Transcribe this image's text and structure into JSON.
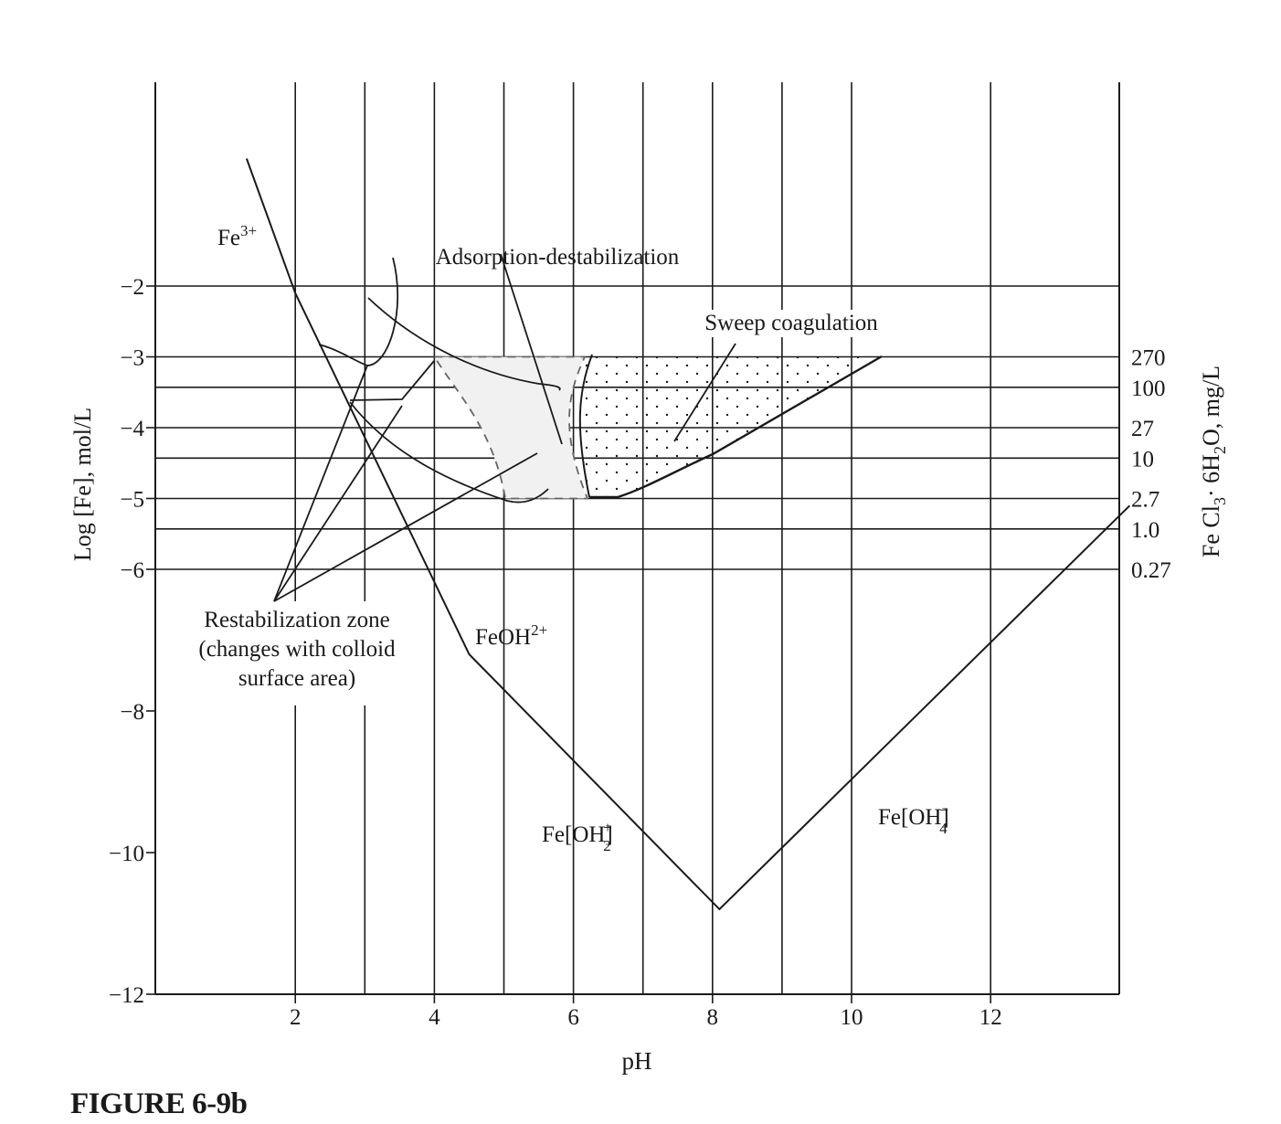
{
  "figure": {
    "caption": "FIGURE 6-9b"
  },
  "chart_data": {
    "type": "line",
    "xlabel": "pH",
    "ylabel": "Log [Fe], mol/L",
    "y2label_parts": [
      "Fe Cl",
      "3",
      "· 6H",
      "2",
      "O, mg/L"
    ],
    "xlim": [
      0,
      14
    ],
    "ylim": [
      -12,
      0
    ],
    "x_ticks": [
      2,
      4,
      6,
      8,
      10,
      12
    ],
    "y_ticks": [
      -2,
      -3,
      -4,
      -5,
      -6,
      -8,
      -10,
      -12
    ],
    "y_tick_labels": [
      "−2",
      "−3",
      "−4",
      "−5",
      "−6",
      "−8",
      "−10",
      "−12"
    ],
    "secondary_y_ticks": [
      {
        "y": -3.0,
        "label": "270"
      },
      {
        "y": -3.43,
        "label": "100"
      },
      {
        "y": -4.0,
        "label": "27"
      },
      {
        "y": -4.43,
        "label": "10"
      },
      {
        "y": -5.0,
        "label": "2.7"
      },
      {
        "y": -5.43,
        "label": "1.0"
      },
      {
        "y": -6.0,
        "label": "0.27"
      }
    ],
    "grid_x": [
      2,
      3,
      4,
      5,
      6,
      7,
      8,
      9,
      10,
      12
    ],
    "grid_y": [
      -2,
      -3,
      -3.43,
      -4,
      -4.43,
      -5,
      -5.43,
      -6
    ],
    "grid": true,
    "series": [
      {
        "name": "solubility boundary",
        "x": [
          1.3,
          2.0,
          4.5,
          8.1,
          14.0
        ],
        "y": [
          -0.2,
          -2.1,
          -7.2,
          -10.8,
          -5.1
        ]
      }
    ],
    "regions": [
      {
        "name": "Sweep coagulation",
        "x": [
          6.2,
          10.5,
          8.0,
          6.7,
          6.2
        ],
        "y": [
          -3.0,
          -3.0,
          -4.4,
          -5.0,
          -5.0
        ]
      },
      {
        "name": "Adsorption-destabilization",
        "x": [
          4.0,
          6.2,
          5.9,
          6.2,
          5.0,
          4.0
        ],
        "y": [
          -3.0,
          -3.0,
          -4.0,
          -5.0,
          -5.0,
          -3.0
        ]
      }
    ],
    "species": [
      {
        "label": "Fe",
        "sup": "3+"
      },
      {
        "label": "FeOH",
        "sup": "2+"
      },
      {
        "label": "Fe[OH]",
        "sup": "+",
        "sub": "2"
      },
      {
        "label": "Fe[OH]",
        "sup": "−",
        "sub": "4"
      }
    ],
    "annotations": [
      {
        "text": "Adsorption-destabilization"
      },
      {
        "text": "Sweep coagulation"
      },
      {
        "text_lines": [
          "Restabilization zone",
          "(changes with colloid",
          "surface area)"
        ]
      }
    ]
  }
}
